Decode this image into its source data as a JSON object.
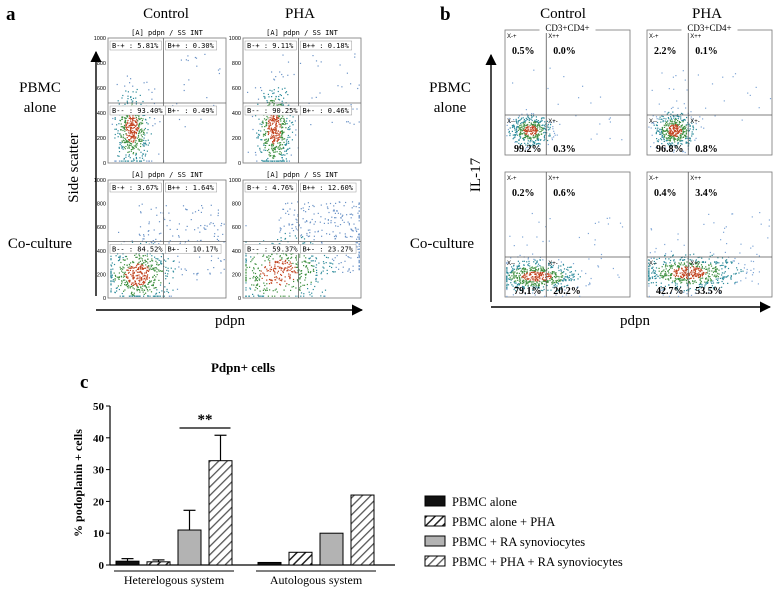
{
  "panel_a": {
    "label": "a",
    "col_headers": [
      "Control",
      "PHA"
    ],
    "row_labels": [
      "PBMC\nalone",
      "Co-culture"
    ],
    "y_axis_label": "Side scatter",
    "x_axis_label": "pdpn",
    "plot_title": "[A] pdpn / SS INT",
    "y_ticks": [
      "0",
      "200",
      "400",
      "600",
      "800",
      "1000"
    ],
    "plots": [
      {
        "tl": "B-+ : 5.81%",
        "tr": "B++ : 0.30%",
        "bl": "B-- : 93.40%",
        "br": "B+- : 0.49%"
      },
      {
        "tl": "B-+ : 9.11%",
        "tr": "B++ : 0.18%",
        "bl": "B-- : 90.25%",
        "br": "B+- : 0.46%"
      },
      {
        "tl": "B-+ : 3.67%",
        "tr": "B++ : 1.64%",
        "bl": "B-- : 84.52%",
        "br": "B+- : 10.17%"
      },
      {
        "tl": "B-+ : 4.76%",
        "tr": "B++ : 12.60%",
        "bl": "B-- : 59.37%",
        "br": "B+- : 23.27%"
      }
    ]
  },
  "panel_b": {
    "label": "b",
    "col_headers": [
      "Control",
      "PHA"
    ],
    "row_labels": [
      "PBMC\nalone",
      "Co-culture"
    ],
    "y_axis_label": "IL-17",
    "x_axis_label": "pdpn",
    "plot_title": "CD3+CD4+",
    "gate_labels": [
      "X-+",
      "X++",
      "X--",
      "X+-"
    ],
    "plots": [
      {
        "tl": "0.5%",
        "tr": "0.0%",
        "bl": "99.2%",
        "br": "0.3%"
      },
      {
        "tl": "2.2%",
        "tr": "0.1%",
        "bl": "96.8%",
        "br": "0.8%"
      },
      {
        "tl": "0.2%",
        "tr": "0.6%",
        "bl": "79.1%",
        "br": "20.2%"
      },
      {
        "tl": "0.4%",
        "tr": "3.4%",
        "bl": "42.7%",
        "br": "53.5%"
      }
    ]
  },
  "panel_c": {
    "label": "c",
    "significance": "**",
    "legend": [
      "PBMC alone",
      "PBMC alone + PHA",
      "PBMC + RA synoviocytes",
      "PBMC + PHA + RA synoviocytes"
    ],
    "colors": {
      "black": "#111111",
      "grey": "#b3b3b3",
      "hatch": "#222222"
    }
  },
  "chart_data": {
    "type": "bar",
    "title": "Pdpn+ cells",
    "ylabel": "% podoplanin + cells",
    "xlabel": "",
    "ylim": [
      0,
      50
    ],
    "yticks": [
      0,
      10,
      20,
      30,
      40,
      50
    ],
    "categories": [
      "Heterelogous system",
      "Autologous system"
    ],
    "series": [
      {
        "name": "PBMC alone",
        "values": [
          1.2,
          0.8
        ],
        "errors": [
          0.8,
          0
        ]
      },
      {
        "name": "PBMC alone + PHA",
        "values": [
          1.0,
          4.0
        ],
        "errors": [
          0.6,
          0
        ]
      },
      {
        "name": "PBMC + RA synoviocytes",
        "values": [
          11.0,
          10.0
        ],
        "errors": [
          6.2,
          0
        ]
      },
      {
        "name": "PBMC + PHA + RA synoviocytes",
        "values": [
          32.8,
          22.0
        ],
        "errors": [
          8.0,
          0
        ]
      }
    ]
  }
}
